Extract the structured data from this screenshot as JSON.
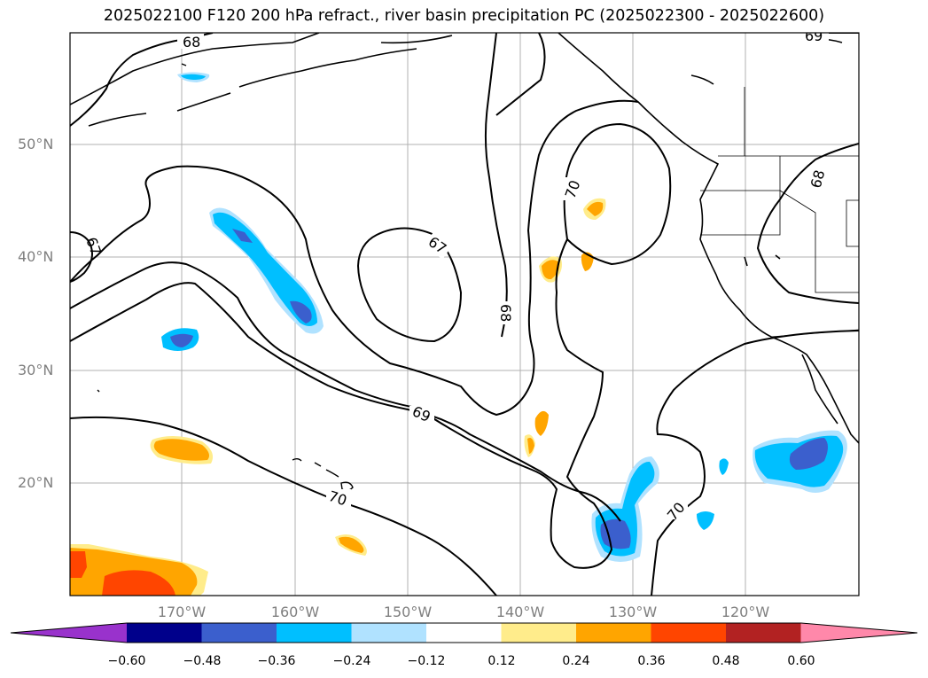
{
  "title": "2025022100 F120 200 hPa refract., river basin precipitation PC (2025022300 - 2025022600)",
  "map": {
    "lon_range": [
      -180,
      -110
    ],
    "lat_range": [
      10,
      60
    ],
    "y_ticks": [
      "50°N",
      "40°N",
      "30°N",
      "20°N"
    ],
    "x_ticks": [
      "170°W",
      "160°W",
      "150°W",
      "140°W",
      "130°W",
      "120°W"
    ],
    "contour_labels": [
      "68",
      "69",
      "67",
      "67",
      "68",
      "70",
      "68",
      "69",
      "70",
      "70"
    ]
  },
  "colorbar": {
    "ticks": [
      "−0.60",
      "−0.48",
      "−0.36",
      "−0.24",
      "−0.12",
      "0.12",
      "0.24",
      "0.36",
      "0.48",
      "0.60"
    ],
    "colors": [
      "#9932cc",
      "#00008b",
      "#3b5fcd",
      "#00bfff",
      "#b0e2ff",
      "#ffffff",
      "#ffec8b",
      "#ffa500",
      "#ff4500",
      "#b22222",
      "#ff88aa"
    ]
  }
}
